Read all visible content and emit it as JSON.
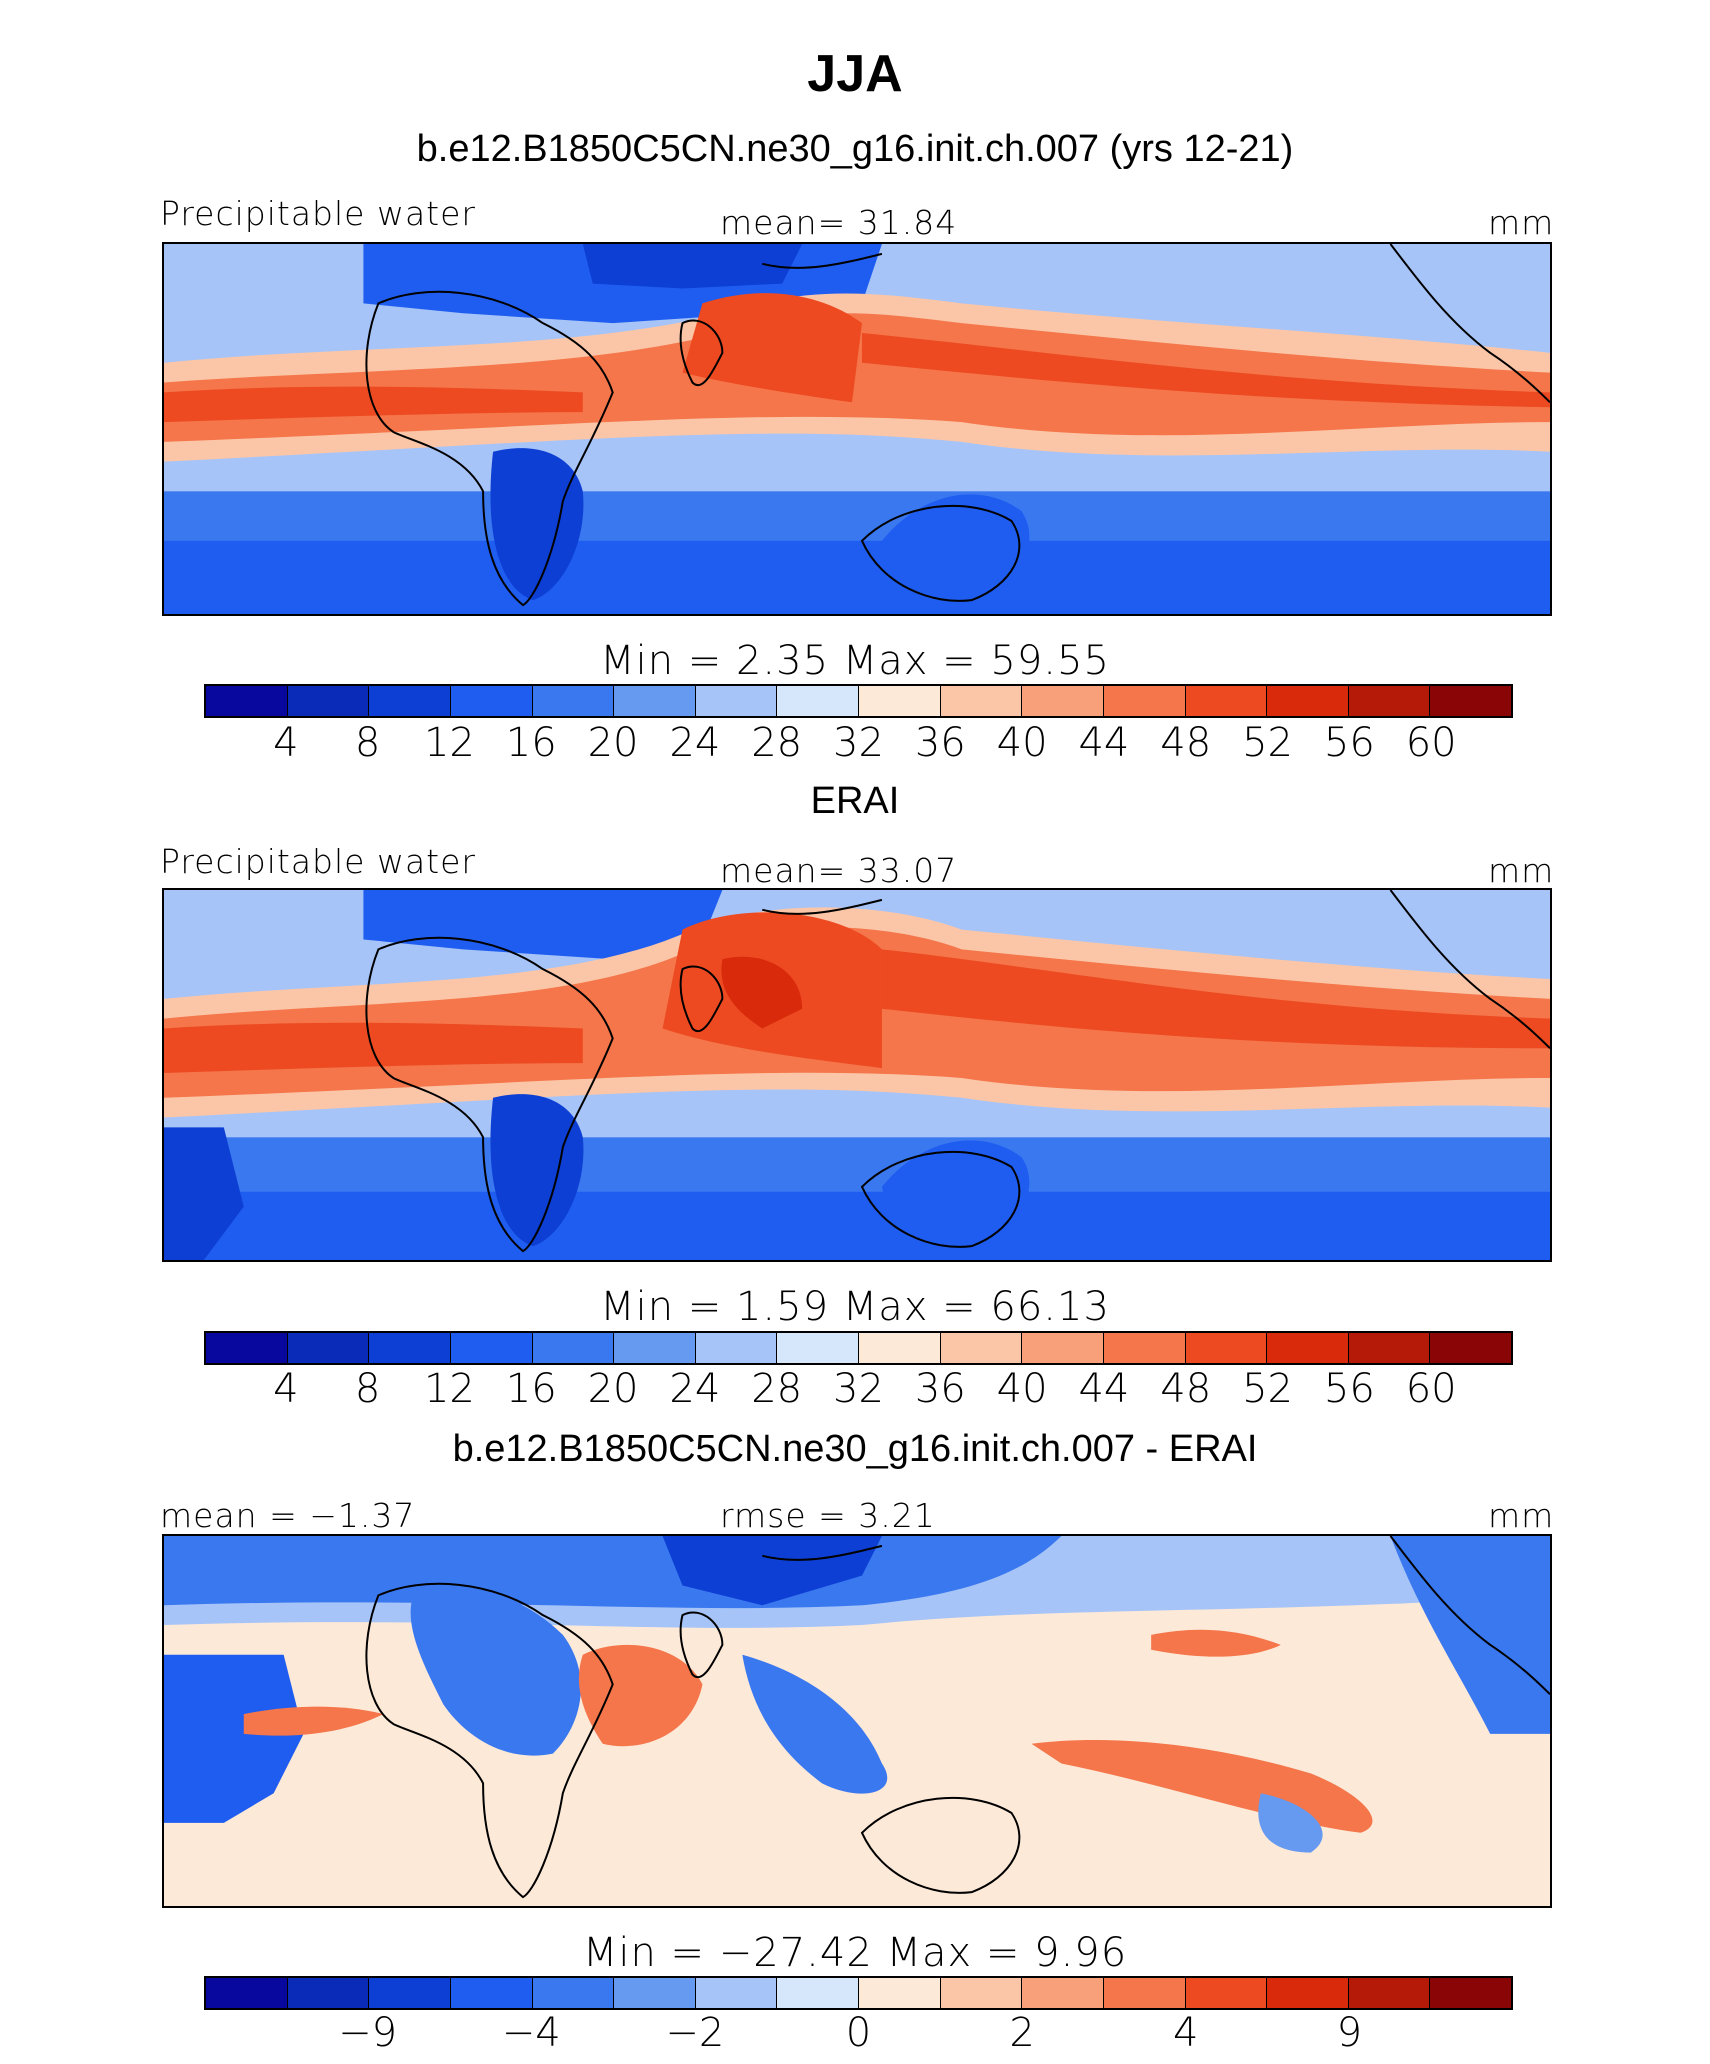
{
  "title": "JJA",
  "palette": [
    "#08089e",
    "#0a2ab8",
    "#0d3fd4",
    "#1f5df0",
    "#3a78f0",
    "#6699f0",
    "#a6c4f7",
    "#d6e6fb",
    "#fde9d8",
    "#fbc6a8",
    "#f7a07a",
    "#f4764a",
    "#ed4a22",
    "#d92a0b",
    "#b51a08",
    "#8a0606"
  ],
  "panels": [
    {
      "subtitle": "b.e12.B1850C5CN.ne30_g16.init.ch.007 (yrs 12-21)",
      "left_label": "Precipitable water",
      "center_label": "mean=   31.84",
      "right_label": "mm",
      "stats": "Min  =     2.35  Max  =    59.55",
      "ticks": [
        "4",
        "8",
        "12",
        "16",
        "20",
        "24",
        "28",
        "32",
        "36",
        "40",
        "44",
        "48",
        "52",
        "56",
        "60"
      ],
      "stats_values": {
        "min": 2.35,
        "max": 59.55,
        "mean": 31.84
      }
    },
    {
      "subtitle": "ERAI",
      "left_label": "Precipitable water",
      "center_label": "mean=   33.07",
      "right_label": "mm",
      "stats": "Min  =     1.59  Max  =    66.13",
      "ticks": [
        "4",
        "8",
        "12",
        "16",
        "20",
        "24",
        "28",
        "32",
        "36",
        "40",
        "44",
        "48",
        "52",
        "56",
        "60"
      ],
      "stats_values": {
        "min": 1.59,
        "max": 66.13,
        "mean": 33.07
      }
    },
    {
      "subtitle": "b.e12.B1850C5CN.ne30_g16.init.ch.007 - ERAI",
      "left_label": "mean  =   −1.37",
      "center_label": "rmse  =      3.21",
      "right_label": "mm",
      "stats": "Min  = −27.42  Max  =     9.96",
      "ticks": [
        "−9",
        "−4",
        "−2",
        "0",
        "2",
        "4",
        "9"
      ],
      "stats_values": {
        "min": -27.42,
        "max": 9.96,
        "mean": -1.37,
        "rmse": 3.21
      }
    }
  ]
}
